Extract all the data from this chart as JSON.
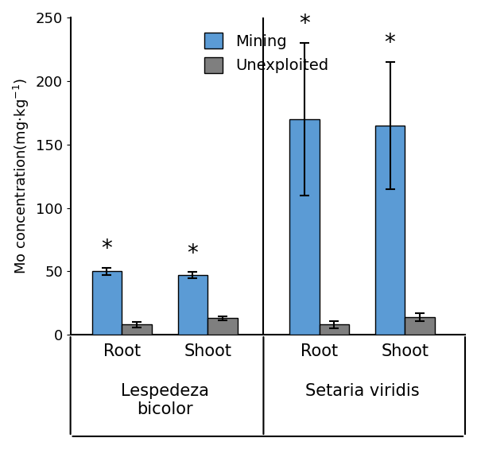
{
  "groups": [
    {
      "label": "Root",
      "species": "Lespedeza\nbicolor",
      "mining_val": 50,
      "unexp_val": 8,
      "mining_err": 3,
      "unexp_err": 2,
      "asterisk": true
    },
    {
      "label": "Shoot",
      "species": "Lespedeza\nbicolor",
      "mining_val": 47,
      "unexp_val": 13,
      "mining_err": 2.5,
      "unexp_err": 1.5,
      "asterisk": true
    },
    {
      "label": "Root",
      "species": "Setaria viridis",
      "mining_val": 170,
      "unexp_val": 8,
      "mining_err": 60,
      "unexp_err": 3,
      "asterisk": true
    },
    {
      "label": "Shoot",
      "species": "Setaria viridis",
      "mining_val": 165,
      "unexp_val": 14,
      "mining_err": 50,
      "unexp_err": 3,
      "asterisk": true
    }
  ],
  "ylim": [
    0,
    250
  ],
  "yticks": [
    0,
    50,
    100,
    150,
    200,
    250
  ],
  "bar_width": 0.35,
  "mining_color": "#5B9BD5",
  "unexp_color": "#7F7F7F",
  "background_color": "#ffffff",
  "bar_edge_color": "#000000",
  "asterisk_fontsize": 20,
  "axis_fontsize": 13,
  "legend_fontsize": 14,
  "tick_fontsize": 13,
  "label_fontsize": 15,
  "species_fontsize": 15,
  "positions": [
    1.0,
    2.0,
    3.3,
    4.3
  ]
}
